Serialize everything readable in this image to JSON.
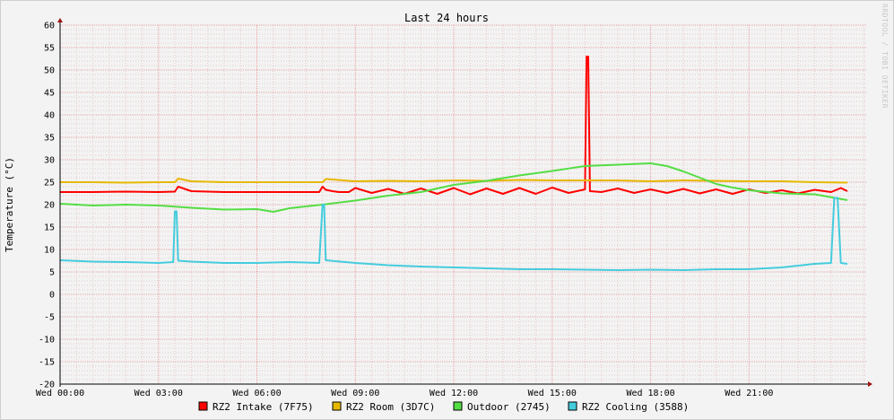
{
  "chart_data": {
    "type": "line",
    "title": "Last 24 hours",
    "ylabel": "Temperature (°C)",
    "watermark": "RRDTOOL / TOBI OETIKER",
    "ylim": [
      -20,
      60
    ],
    "y_ticks": [
      60,
      55,
      50,
      45,
      40,
      35,
      30,
      25,
      20,
      15,
      10,
      5,
      0,
      -5,
      -10,
      -15,
      -20
    ],
    "x_range_hours": [
      0,
      24.6
    ],
    "x_ticks": [
      {
        "label": "Wed 00:00",
        "hour": 0
      },
      {
        "label": "Wed 03:00",
        "hour": 3
      },
      {
        "label": "Wed 06:00",
        "hour": 6
      },
      {
        "label": "Wed 09:00",
        "hour": 9
      },
      {
        "label": "Wed 12:00",
        "hour": 12
      },
      {
        "label": "Wed 15:00",
        "hour": 15
      },
      {
        "label": "Wed 18:00",
        "hour": 18
      },
      {
        "label": "Wed 21:00",
        "hour": 21
      }
    ],
    "grid": true,
    "legend_position": "bottom",
    "series": [
      {
        "name": "RZ2 Intake (7F75)",
        "color": "#ff0000",
        "x": [
          0,
          1,
          2,
          3,
          3.5,
          3.6,
          4,
          5,
          6,
          7,
          7.9,
          8.0,
          8.1,
          8.3,
          8.5,
          8.8,
          9.0,
          9.5,
          10,
          10.5,
          11,
          11.5,
          12,
          12.5,
          13,
          13.5,
          14,
          14.5,
          15,
          15.5,
          16.0,
          16.05,
          16.1,
          16.15,
          16.5,
          17,
          17.5,
          18,
          18.5,
          19,
          19.5,
          20,
          20.5,
          21,
          21.5,
          22,
          22.5,
          23,
          23.5,
          23.8,
          24.0
        ],
        "y": [
          22.8,
          22.8,
          22.9,
          22.8,
          22.9,
          24.0,
          23.0,
          22.8,
          22.8,
          22.8,
          22.8,
          24.0,
          23.3,
          23.0,
          22.8,
          22.8,
          23.7,
          22.6,
          23.5,
          22.4,
          23.6,
          22.4,
          23.7,
          22.3,
          23.6,
          22.4,
          23.7,
          22.4,
          23.8,
          22.6,
          23.4,
          53.0,
          53.0,
          23.0,
          22.8,
          23.6,
          22.6,
          23.4,
          22.6,
          23.5,
          22.5,
          23.4,
          22.4,
          23.4,
          22.6,
          23.2,
          22.5,
          23.3,
          22.8,
          23.7,
          23.0
        ]
      },
      {
        "name": "RZ2 Room (3D7C)",
        "color": "#e6b800",
        "x": [
          0,
          1,
          2,
          3,
          3.5,
          3.6,
          4,
          5,
          6,
          7,
          8.0,
          8.1,
          9,
          10,
          11,
          12,
          13,
          14,
          15,
          16,
          17,
          18,
          19,
          20,
          21,
          22,
          23,
          24.0
        ],
        "y": [
          25.0,
          25.0,
          24.9,
          25.0,
          25.0,
          25.8,
          25.2,
          25.0,
          25.0,
          25.0,
          25.0,
          25.7,
          25.2,
          25.3,
          25.2,
          25.4,
          25.3,
          25.5,
          25.4,
          25.4,
          25.4,
          25.2,
          25.4,
          25.3,
          25.2,
          25.2,
          25.0,
          24.9
        ]
      },
      {
        "name": "Outdoor (2745)",
        "color": "#55dd44",
        "x": [
          0,
          1,
          2,
          3,
          4,
          5,
          6,
          6.5,
          7,
          8,
          9,
          10,
          11,
          12,
          13,
          14,
          15,
          16,
          17,
          18,
          18.5,
          19,
          19.5,
          20,
          20.5,
          21,
          22,
          23,
          24.0
        ],
        "y": [
          20.2,
          19.8,
          20.0,
          19.8,
          19.3,
          18.9,
          19.0,
          18.4,
          19.2,
          20.0,
          20.9,
          22.0,
          22.8,
          24.4,
          25.3,
          26.5,
          27.5,
          28.6,
          28.9,
          29.2,
          28.6,
          27.4,
          26.0,
          24.6,
          23.8,
          23.2,
          22.5,
          22.3,
          21.0
        ]
      },
      {
        "name": "RZ2 Cooling (3588)",
        "color": "#44ccdd",
        "x": [
          0,
          1,
          2,
          3,
          3.45,
          3.5,
          3.55,
          3.6,
          4,
          5,
          6,
          7,
          7.9,
          8.0,
          8.05,
          8.1,
          9,
          10,
          11,
          12,
          13,
          14,
          15,
          16,
          17,
          18,
          19,
          20,
          21,
          22,
          23,
          23.5,
          23.6,
          23.7,
          23.8,
          24.0
        ],
        "y": [
          7.6,
          7.3,
          7.2,
          7.0,
          7.2,
          18.5,
          18.5,
          7.5,
          7.3,
          7.0,
          7.0,
          7.2,
          7.0,
          20.0,
          20.0,
          7.6,
          7.0,
          6.5,
          6.2,
          6.0,
          5.8,
          5.6,
          5.6,
          5.5,
          5.4,
          5.5,
          5.4,
          5.6,
          5.6,
          6.0,
          6.8,
          7.0,
          21.5,
          21.5,
          7.0,
          6.8
        ]
      }
    ]
  }
}
